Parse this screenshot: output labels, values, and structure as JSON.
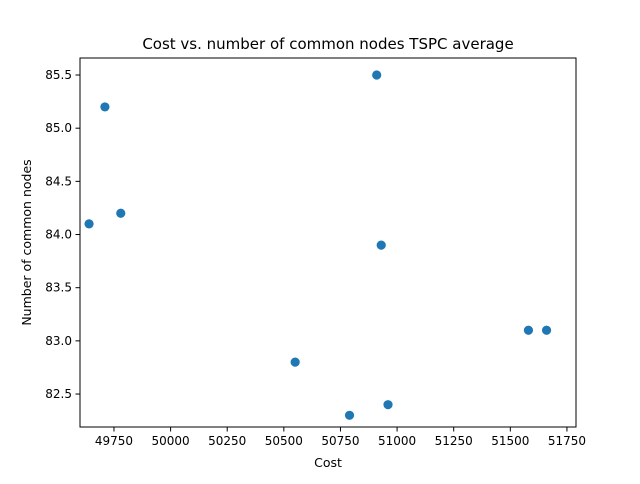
{
  "chart_data": {
    "type": "scatter",
    "title": "Cost vs. number of common nodes TSPC average",
    "xlabel": "Cost",
    "ylabel": "Number of common nodes",
    "xlim": [
      49600,
      51790
    ],
    "ylim": [
      82.19,
      85.66
    ],
    "xticks": [
      49750,
      50000,
      50250,
      50500,
      50750,
      51000,
      51250,
      51500,
      51750
    ],
    "yticks": [
      82.5,
      83.0,
      83.5,
      84.0,
      84.5,
      85.0,
      85.5
    ],
    "xtick_labels": [
      "49750",
      "50000",
      "50250",
      "50500",
      "50750",
      "51000",
      "51250",
      "51500",
      "51750"
    ],
    "ytick_labels": [
      "82.5",
      "83.0",
      "83.5",
      "84.0",
      "84.5",
      "85.0",
      "85.5"
    ],
    "grid": false,
    "legend": "none",
    "marker_color": "#1f77b4",
    "points": [
      {
        "x": 49640,
        "y": 84.1
      },
      {
        "x": 49710,
        "y": 85.2
      },
      {
        "x": 49780,
        "y": 84.2
      },
      {
        "x": 50550,
        "y": 82.8
      },
      {
        "x": 50790,
        "y": 82.3
      },
      {
        "x": 50910,
        "y": 85.5
      },
      {
        "x": 50930,
        "y": 83.9
      },
      {
        "x": 50960,
        "y": 82.4
      },
      {
        "x": 51580,
        "y": 83.1
      },
      {
        "x": 51660,
        "y": 83.1
      }
    ]
  }
}
